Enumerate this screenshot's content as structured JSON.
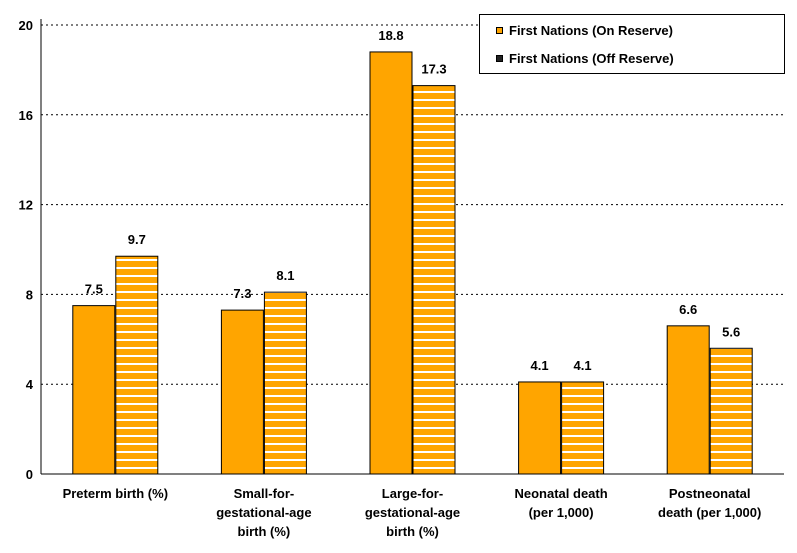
{
  "chart_data": {
    "type": "bar",
    "categories": [
      "Preterm birth (%)",
      "Small-for-gestational-age birth (%)",
      "Large-for-gestational-age birth (%)",
      "Neonatal death (per 1,000)",
      "Postneonatal death (per 1,000)"
    ],
    "category_lines": [
      [
        "Preterm birth (%)"
      ],
      [
        "Small-for-",
        "gestational-age",
        "birth (%)"
      ],
      [
        "Large-for-",
        "gestational-age",
        "birth (%)"
      ],
      [
        "Neonatal death",
        "(per 1,000)"
      ],
      [
        "Postneonatal",
        "death (per 1,000)"
      ]
    ],
    "series": [
      {
        "name": "First Nations (On Reserve)",
        "values": [
          7.5,
          7.3,
          18.8,
          4.1,
          6.6
        ],
        "color": "#FFA500",
        "pattern": "solid"
      },
      {
        "name": "First Nations (Off Reserve)",
        "values": [
          9.7,
          8.1,
          17.3,
          4.1,
          5.6
        ],
        "color": "#FFA500",
        "pattern": "white-horizontal-stripes"
      }
    ],
    "data_labels": [
      [
        "7.5",
        "7.3",
        "18.8",
        "4.1",
        "6.6"
      ],
      [
        "9.7",
        "8.1",
        "17.3",
        "4.1",
        "5.6"
      ]
    ],
    "yticks": [
      "0",
      "4",
      "8",
      "12",
      "16",
      "20"
    ],
    "ylim": [
      0,
      20
    ],
    "grid": "horizontal-dotted",
    "legend_position": "top-right"
  }
}
